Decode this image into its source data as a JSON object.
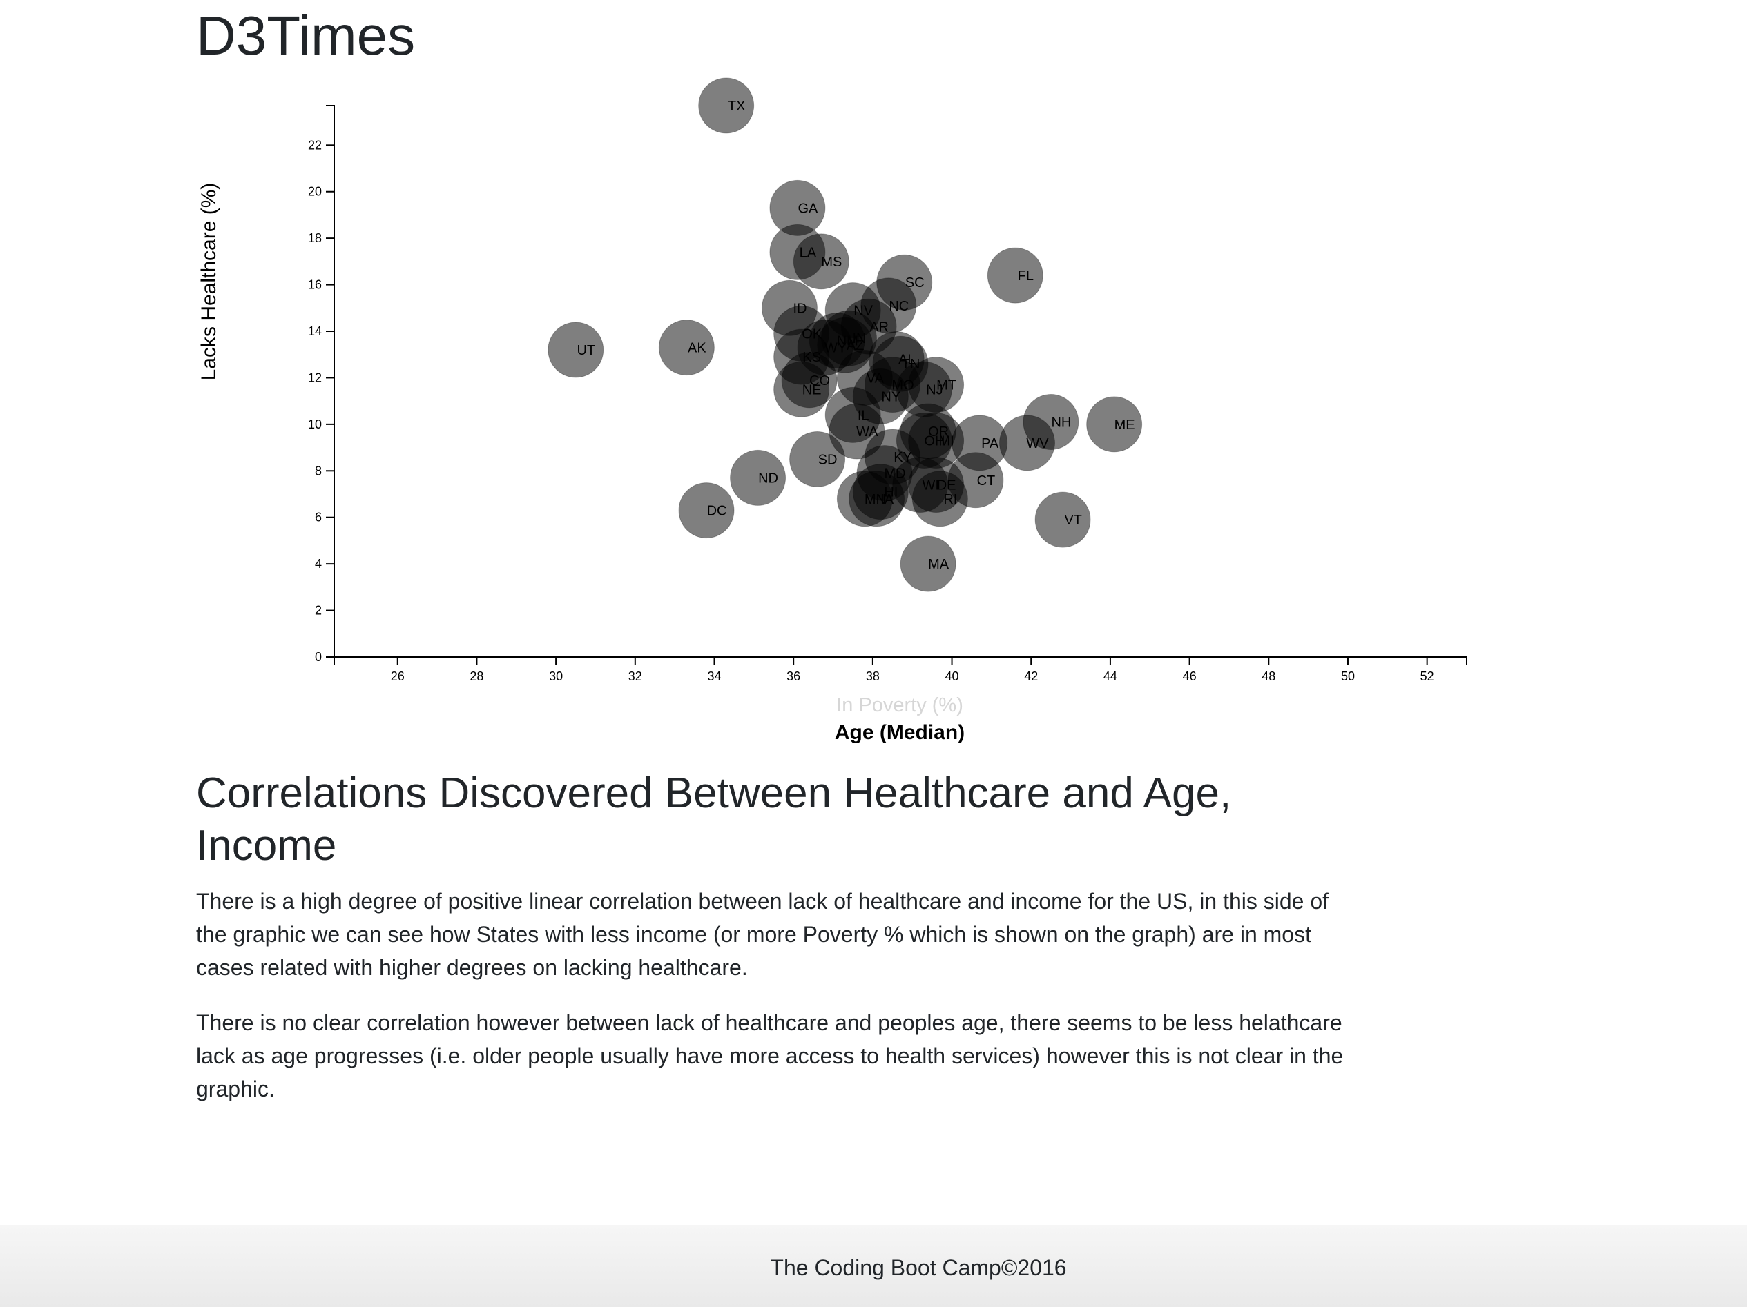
{
  "page": {
    "title": "D3Times",
    "analysis_title": "Correlations Discovered Between Healthcare and Age, Income",
    "paragraphs": [
      "There is a high degree of positive linear correlation between lack of healthcare and income for the US, in this side of the graphic we can see how States with less income (or more Poverty % which is shown on the graph) are in most cases related with higher degrees on lacking healthcare.",
      "There is no clear correlation however between lack of healthcare and peoples age, there seems to be less helathcare lack as age progresses (i.e. older people usually have more access to health services) however this is not clear in the graphic."
    ],
    "footer": "The Coding Boot Camp©2016"
  },
  "chart_data": {
    "type": "scatter",
    "title": "",
    "ylabel": "Lacks Healthcare (%)",
    "xlabel_options": [
      {
        "label": "In Poverty (%)",
        "active": false
      },
      {
        "label": "Age (Median)",
        "active": true
      }
    ],
    "xlim": [
      24.4,
      53
    ],
    "ylim": [
      0,
      23.7
    ],
    "xticks": [
      26,
      28,
      30,
      32,
      34,
      36,
      38,
      40,
      42,
      44,
      46,
      48,
      50,
      52
    ],
    "yticks": [
      0,
      2,
      4,
      6,
      8,
      10,
      12,
      14,
      16,
      18,
      20,
      22
    ],
    "grid": false,
    "colors": {
      "marker": "#000000",
      "axis": "#000000",
      "inactive_label": "#d6d6d6"
    },
    "points": [
      {
        "abbr": "TX",
        "x": 34.3,
        "y": 23.7
      },
      {
        "abbr": "GA",
        "x": 36.1,
        "y": 19.3
      },
      {
        "abbr": "LA",
        "x": 36.1,
        "y": 17.4
      },
      {
        "abbr": "MS",
        "x": 36.7,
        "y": 17.0
      },
      {
        "abbr": "FL",
        "x": 41.6,
        "y": 16.4
      },
      {
        "abbr": "SC",
        "x": 38.8,
        "y": 16.1
      },
      {
        "abbr": "NC",
        "x": 38.4,
        "y": 15.1
      },
      {
        "abbr": "ID",
        "x": 35.9,
        "y": 15.0
      },
      {
        "abbr": "NV",
        "x": 37.5,
        "y": 14.9
      },
      {
        "abbr": "AR",
        "x": 37.9,
        "y": 14.2
      },
      {
        "abbr": "OK",
        "x": 36.2,
        "y": 13.9
      },
      {
        "abbr": "IN",
        "x": 37.4,
        "y": 13.7
      },
      {
        "abbr": "NM",
        "x": 37.1,
        "y": 13.6
      },
      {
        "abbr": "WY",
        "x": 36.8,
        "y": 13.3
      },
      {
        "abbr": "AZ",
        "x": 37.3,
        "y": 13.4
      },
      {
        "abbr": "UT",
        "x": 30.5,
        "y": 13.2
      },
      {
        "abbr": "AK",
        "x": 33.3,
        "y": 13.3
      },
      {
        "abbr": "KS",
        "x": 36.2,
        "y": 12.9
      },
      {
        "abbr": "AL",
        "x": 38.6,
        "y": 12.8
      },
      {
        "abbr": "TN",
        "x": 38.7,
        "y": 12.6
      },
      {
        "abbr": "CO",
        "x": 36.4,
        "y": 11.9
      },
      {
        "abbr": "VA",
        "x": 37.8,
        "y": 12.0
      },
      {
        "abbr": "MO",
        "x": 38.5,
        "y": 11.7
      },
      {
        "abbr": "MT",
        "x": 39.6,
        "y": 11.7
      },
      {
        "abbr": "NE",
        "x": 36.2,
        "y": 11.5
      },
      {
        "abbr": "NJ",
        "x": 39.3,
        "y": 11.5
      },
      {
        "abbr": "NY",
        "x": 38.2,
        "y": 11.2
      },
      {
        "abbr": "IL",
        "x": 37.5,
        "y": 10.4
      },
      {
        "abbr": "NH",
        "x": 42.5,
        "y": 10.1
      },
      {
        "abbr": "ME",
        "x": 44.1,
        "y": 10.0
      },
      {
        "abbr": "WA",
        "x": 37.6,
        "y": 9.7
      },
      {
        "abbr": "OR",
        "x": 39.4,
        "y": 9.7
      },
      {
        "abbr": "OH",
        "x": 39.3,
        "y": 9.3
      },
      {
        "abbr": "MI",
        "x": 39.6,
        "y": 9.3
      },
      {
        "abbr": "WV",
        "x": 41.9,
        "y": 9.2
      },
      {
        "abbr": "PA",
        "x": 40.7,
        "y": 9.2
      },
      {
        "abbr": "KY",
        "x": 38.5,
        "y": 8.6
      },
      {
        "abbr": "SD",
        "x": 36.6,
        "y": 8.5
      },
      {
        "abbr": "MD",
        "x": 38.3,
        "y": 7.9
      },
      {
        "abbr": "ND",
        "x": 35.1,
        "y": 7.7
      },
      {
        "abbr": "CT",
        "x": 40.6,
        "y": 7.6
      },
      {
        "abbr": "WI",
        "x": 39.2,
        "y": 7.4
      },
      {
        "abbr": "DE",
        "x": 39.6,
        "y": 7.4
      },
      {
        "abbr": "HI",
        "x": 38.2,
        "y": 7.1
      },
      {
        "abbr": "MN",
        "x": 37.8,
        "y": 6.8
      },
      {
        "abbr": "IA",
        "x": 38.1,
        "y": 6.8
      },
      {
        "abbr": "RI",
        "x": 39.7,
        "y": 6.8
      },
      {
        "abbr": "DC",
        "x": 33.8,
        "y": 6.3
      },
      {
        "abbr": "VT",
        "x": 42.8,
        "y": 5.9
      },
      {
        "abbr": "MA",
        "x": 39.4,
        "y": 4.0
      }
    ]
  }
}
